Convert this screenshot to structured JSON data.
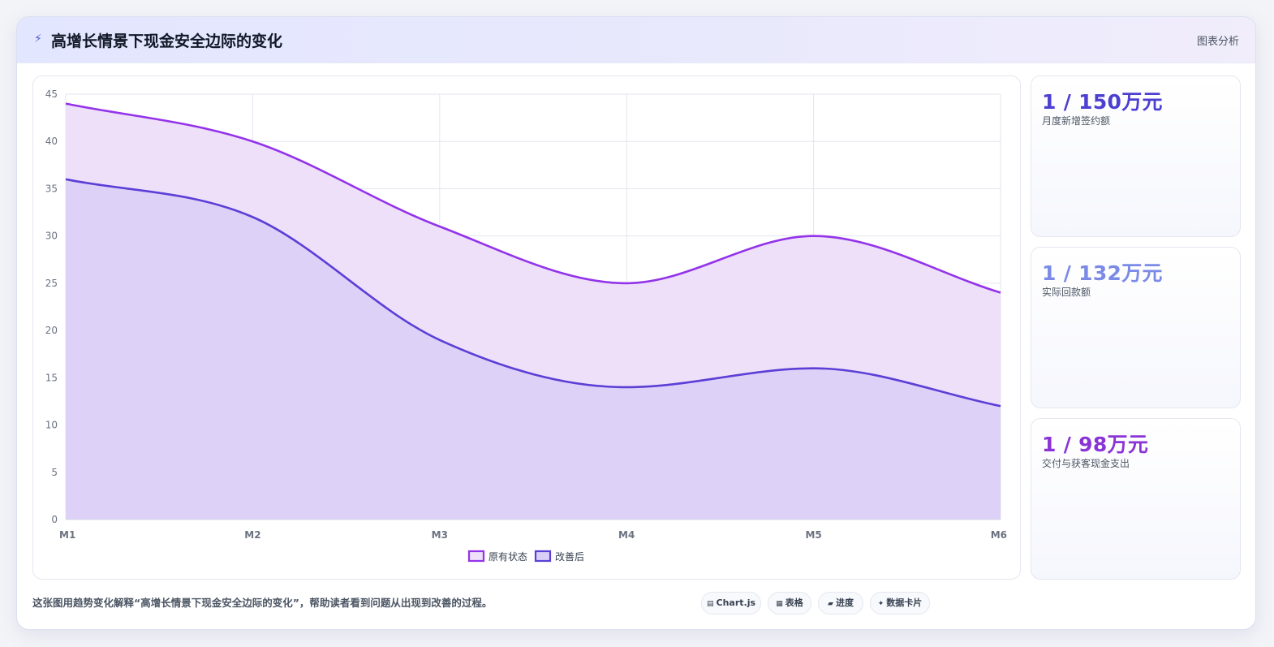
{
  "header": {
    "icon": "lightning-icon",
    "title": "高增长情景下现金安全边际的变化",
    "link": "图表分析"
  },
  "chart_data": {
    "type": "area",
    "categories": [
      "M1",
      "M2",
      "M3",
      "M4",
      "M5",
      "M6"
    ],
    "ylim": [
      0,
      45
    ],
    "yticks": [
      0,
      5,
      10,
      15,
      20,
      25,
      30,
      35,
      40,
      45
    ],
    "grid": true,
    "legend_position": "bottom",
    "series": [
      {
        "name": "原有状态",
        "values": [
          44,
          40,
          31,
          25,
          30,
          24
        ],
        "color": "#9333ea",
        "fill": "#eee0f9"
      },
      {
        "name": "改善后",
        "values": [
          36,
          32,
          19,
          14,
          16,
          12
        ],
        "color": "#5b3fd6",
        "fill": "#dacff7"
      }
    ]
  },
  "stats": [
    {
      "value": "1 / 150万元",
      "label": "月度新增签约额",
      "color": "#4c3fd1"
    },
    {
      "value": "1 / 132万元",
      "label": "实际回款额",
      "color": "#7a8ae6"
    },
    {
      "value": "1 / 98万元",
      "label": "交付与获客现金支出",
      "color": "#8a33d6"
    }
  ],
  "footer": {
    "text": "这张图用趋势变化解释“高增长情景下现金安全边际的变化”，帮助读者看到问题从出现到改善的过程。",
    "tags": [
      {
        "icon": "chart-icon",
        "glyph": "▤",
        "label": "Chart.js"
      },
      {
        "icon": "table-icon",
        "glyph": "▦",
        "label": "表格"
      },
      {
        "icon": "progress-icon",
        "glyph": "▰",
        "label": "进度"
      },
      {
        "icon": "sparkle-icon",
        "glyph": "✦",
        "label": "数据卡片"
      }
    ]
  }
}
